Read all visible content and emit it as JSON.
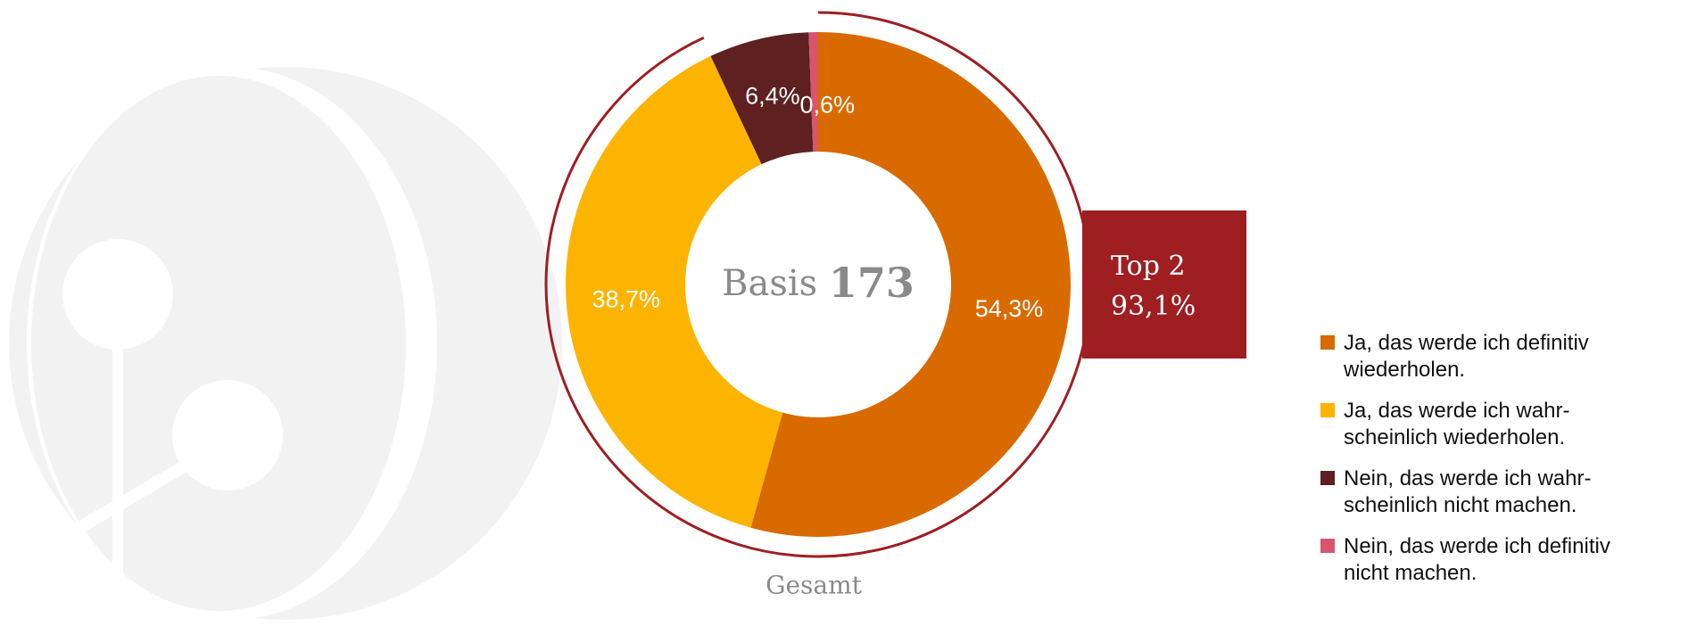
{
  "chart_data": {
    "type": "donut",
    "categories": [
      "Ja, das werde ich definitiv wiederholen.",
      "Ja, das werde ich wahr-scheinlich wiederholen.",
      "Nein, das werde ich wahr-scheinlich nicht machen.",
      "Nein, das werde ich definitiv nicht machen."
    ],
    "values": [
      54.3,
      38.7,
      6.4,
      0.6
    ],
    "value_labels": [
      "54,3%",
      "38,7%",
      "6,4%",
      "0,6%"
    ],
    "colors": [
      "#d96a00",
      "#fdb400",
      "#5e2020",
      "#d9546e"
    ],
    "center_label": "Basis",
    "base": 173,
    "top2": {
      "label": "Top 2",
      "value": 93.1,
      "value_label": "93,1%",
      "color": "#9e1e22"
    },
    "xlabel": "Gesamt"
  }
}
